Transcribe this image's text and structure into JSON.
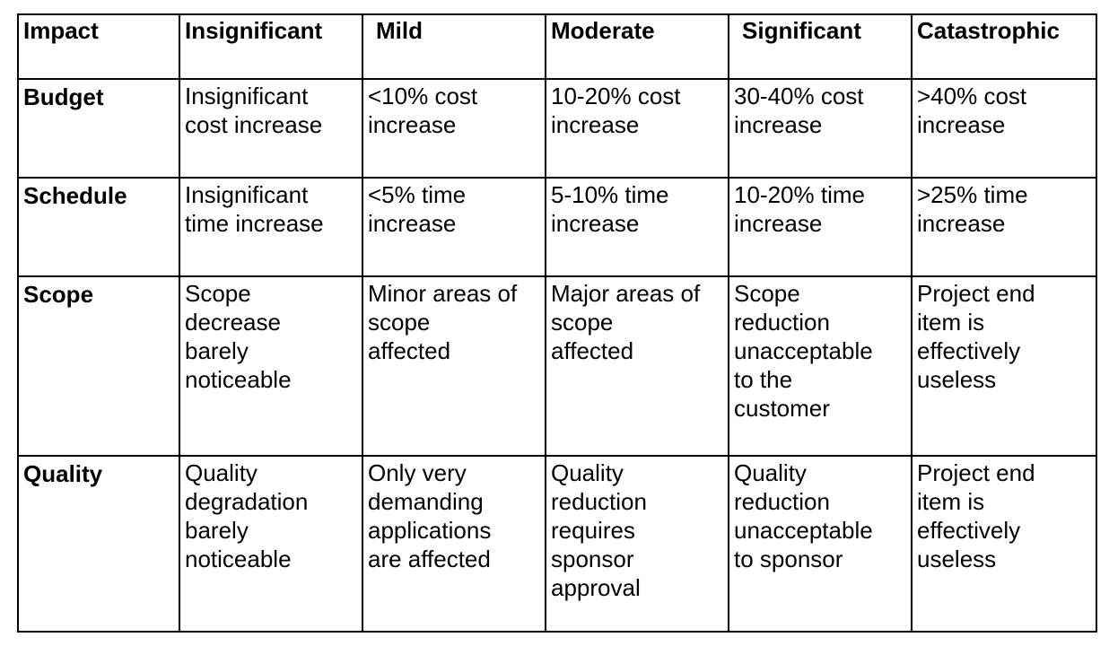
{
  "table": {
    "headers": [
      "Impact",
      "Insignificant",
      "Mild",
      "Moderate",
      "Significant",
      "Catastrophic"
    ],
    "rows": [
      {
        "label": "Budget",
        "cells": [
          "Insignificant\ncost increase",
          "<10% cost\nincrease",
          "10-20% cost\nincrease",
          "30-40% cost\nincrease",
          ">40% cost\nincrease"
        ]
      },
      {
        "label": "Schedule",
        "cells": [
          "Insignificant\ntime increase",
          "<5% time\nincrease",
          "5-10% time\nincrease",
          "10-20% time\nincrease",
          ">25% time\nincrease"
        ]
      },
      {
        "label": "Scope",
        "cells": [
          "Scope\ndecrease\nbarely\nnoticeable",
          "Minor areas of\nscope\naffected",
          "Major areas of\nscope\naffected",
          "Scope\nreduction\nunacceptable\nto the\ncustomer",
          "Project end\nitem is\neffectively\nuseless"
        ]
      },
      {
        "label": "Quality",
        "cells": [
          "Quality\ndegradation\nbarely\nnoticeable",
          "Only very\ndemanding\napplications\nare affected",
          "Quality\nreduction\nrequires\nsponsor\napproval",
          "Quality\nreduction\nunacceptable\nto sponsor",
          "Project end\nitem is\neffectively\nuseless"
        ]
      }
    ]
  }
}
